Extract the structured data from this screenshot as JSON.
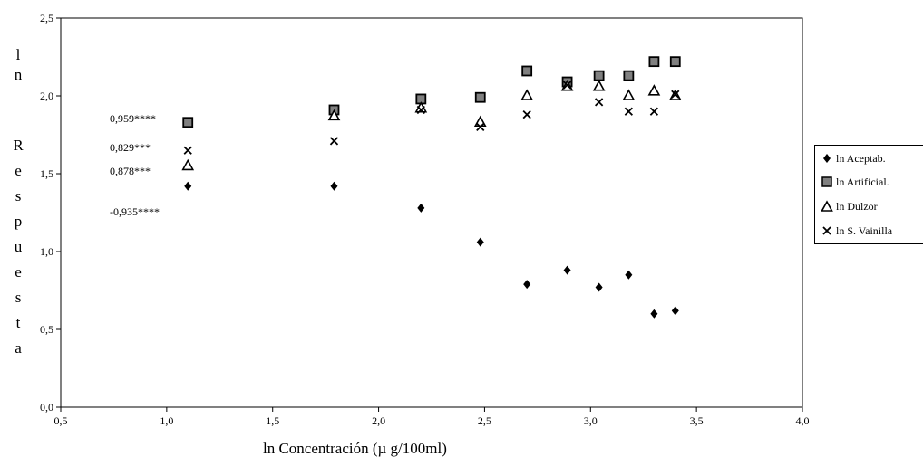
{
  "chart_data": {
    "type": "scatter",
    "title": "",
    "xlabel": "ln Concentración (µ g/100ml)",
    "ylabel": "ln Respuesta",
    "xlim": [
      0.5,
      4.0
    ],
    "ylim": [
      0.0,
      2.5
    ],
    "xticks": [
      "0,5",
      "1,0",
      "1,5",
      "2,0",
      "2,5",
      "3,0",
      "3,5",
      "4,0"
    ],
    "yticks": [
      "0,0",
      "0,5",
      "1,0",
      "1,5",
      "2,0",
      "2,5"
    ],
    "grid": false,
    "legend_position": "right",
    "series": [
      {
        "name": "ln Aceptab.",
        "marker": "diamond",
        "color": "#000000",
        "x": [
          1.1,
          1.79,
          2.2,
          2.48,
          2.7,
          2.89,
          3.04,
          3.18,
          3.3,
          3.4
        ],
        "y": [
          1.42,
          1.42,
          1.28,
          1.06,
          0.79,
          0.88,
          0.77,
          0.85,
          0.6,
          0.62
        ]
      },
      {
        "name": "ln Artificial.",
        "marker": "square",
        "color": "#808080",
        "x": [
          1.1,
          1.79,
          2.2,
          2.48,
          2.7,
          2.89,
          3.04,
          3.18,
          3.3,
          3.4
        ],
        "y": [
          1.83,
          1.91,
          1.98,
          1.99,
          2.16,
          2.09,
          2.13,
          2.13,
          2.22,
          2.22
        ]
      },
      {
        "name": "ln Dulzor",
        "marker": "triangle",
        "color": "#ffffff",
        "x": [
          1.1,
          1.79,
          2.2,
          2.48,
          2.7,
          2.89,
          3.04,
          3.18,
          3.3,
          3.4
        ],
        "y": [
          1.55,
          1.87,
          1.92,
          1.83,
          2.0,
          2.06,
          2.06,
          2.0,
          2.03,
          2.0
        ]
      },
      {
        "name": "ln S. Vainilla",
        "marker": "x",
        "color": "#000000",
        "x": [
          1.1,
          1.79,
          2.2,
          2.48,
          2.7,
          2.89,
          3.04,
          3.18,
          3.3,
          3.4
        ],
        "y": [
          1.65,
          1.71,
          1.91,
          1.8,
          1.88,
          2.07,
          1.96,
          1.9,
          1.9,
          2.01
        ]
      }
    ],
    "annotations": [
      "0,959****",
      "0,829***",
      "0,878***",
      "-0,935****"
    ]
  }
}
